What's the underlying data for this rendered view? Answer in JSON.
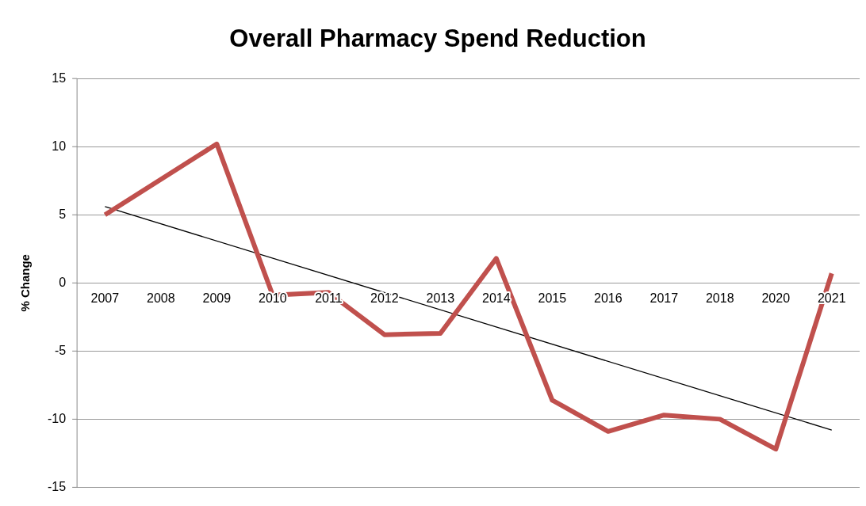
{
  "chart_data": {
    "type": "line",
    "title": "Overall Pharmacy Spend Reduction",
    "ylabel": "% Change",
    "categories": [
      "2007",
      "2008",
      "2009",
      "2010",
      "2011",
      "2012",
      "2013",
      "2014",
      "2015",
      "2016",
      "2017",
      "2018",
      "2020",
      "2021"
    ],
    "series": [
      {
        "color": "#c0504d",
        "values": [
          5.0,
          7.6,
          10.2,
          -0.9,
          -0.7,
          -3.8,
          -3.7,
          1.8,
          -8.6,
          -10.9,
          -9.7,
          -10.0,
          -12.2,
          0.7
        ]
      },
      {
        "type": "line",
        "color": "#000000",
        "values": [
          5.6,
          null,
          null,
          null,
          null,
          null,
          null,
          null,
          null,
          null,
          null,
          null,
          null,
          -10.8
        ]
      }
    ],
    "ylim": [
      -15,
      15
    ],
    "yticks": [
      -15,
      -10,
      -5,
      0,
      5,
      10,
      15
    ],
    "grid": "y",
    "legend": false,
    "marker": "none",
    "line_style": "solid"
  }
}
